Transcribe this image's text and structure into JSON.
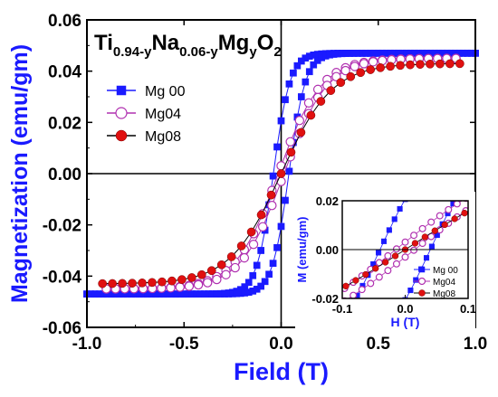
{
  "chart_data": [
    {
      "type": "line",
      "title": "",
      "annotation": {
        "base": [
          "Ti",
          "Na",
          "Mg",
          "O"
        ],
        "subs": [
          "0.94-y",
          "0.06-y",
          "y",
          "2"
        ]
      },
      "xlabel": "Field (T)",
      "ylabel": "Magnetization (emu/gm)",
      "xlim": [
        -1.0,
        1.0
      ],
      "ylim": [
        -0.06,
        0.06
      ],
      "xticks": [
        "-1.0",
        "-0.5",
        "0.0",
        "0.5",
        "1.0"
      ],
      "yticks": [
        "0.06",
        "0.04",
        "0.02",
        "0.00",
        "-0.02",
        "-0.04",
        "-0.06"
      ],
      "legend_position": "upper-left",
      "series": [
        {
          "name": "Mg 00",
          "color": "#1a1aff",
          "marker": "square",
          "Ms": 0.047,
          "a": 0.085,
          "Hc": 0.04
        },
        {
          "name": "Mg04",
          "color": "#b030b0",
          "marker": "open-circle",
          "Ms": 0.045,
          "a": 0.22,
          "Hc": 0.015
        },
        {
          "name": "Mg08",
          "color": "#e01010",
          "marker": "filled-circle",
          "Ms": 0.043,
          "a": 0.26,
          "Hc": 0.0
        }
      ]
    },
    {
      "type": "line",
      "title": "",
      "xlabel": "H (T)",
      "ylabel": "M (emu/gm)",
      "xlim": [
        -0.1,
        0.1
      ],
      "ylim": [
        -0.02,
        0.02
      ],
      "xticks": [
        "-0.1",
        "0.0",
        "0.1"
      ],
      "yticks": [
        "0.02",
        "0.00",
        "-0.02"
      ],
      "legend_position": "lower-right",
      "series": [
        {
          "name": "Mg 00"
        },
        {
          "name": "Mg04"
        },
        {
          "name": "Mg08"
        }
      ]
    }
  ]
}
